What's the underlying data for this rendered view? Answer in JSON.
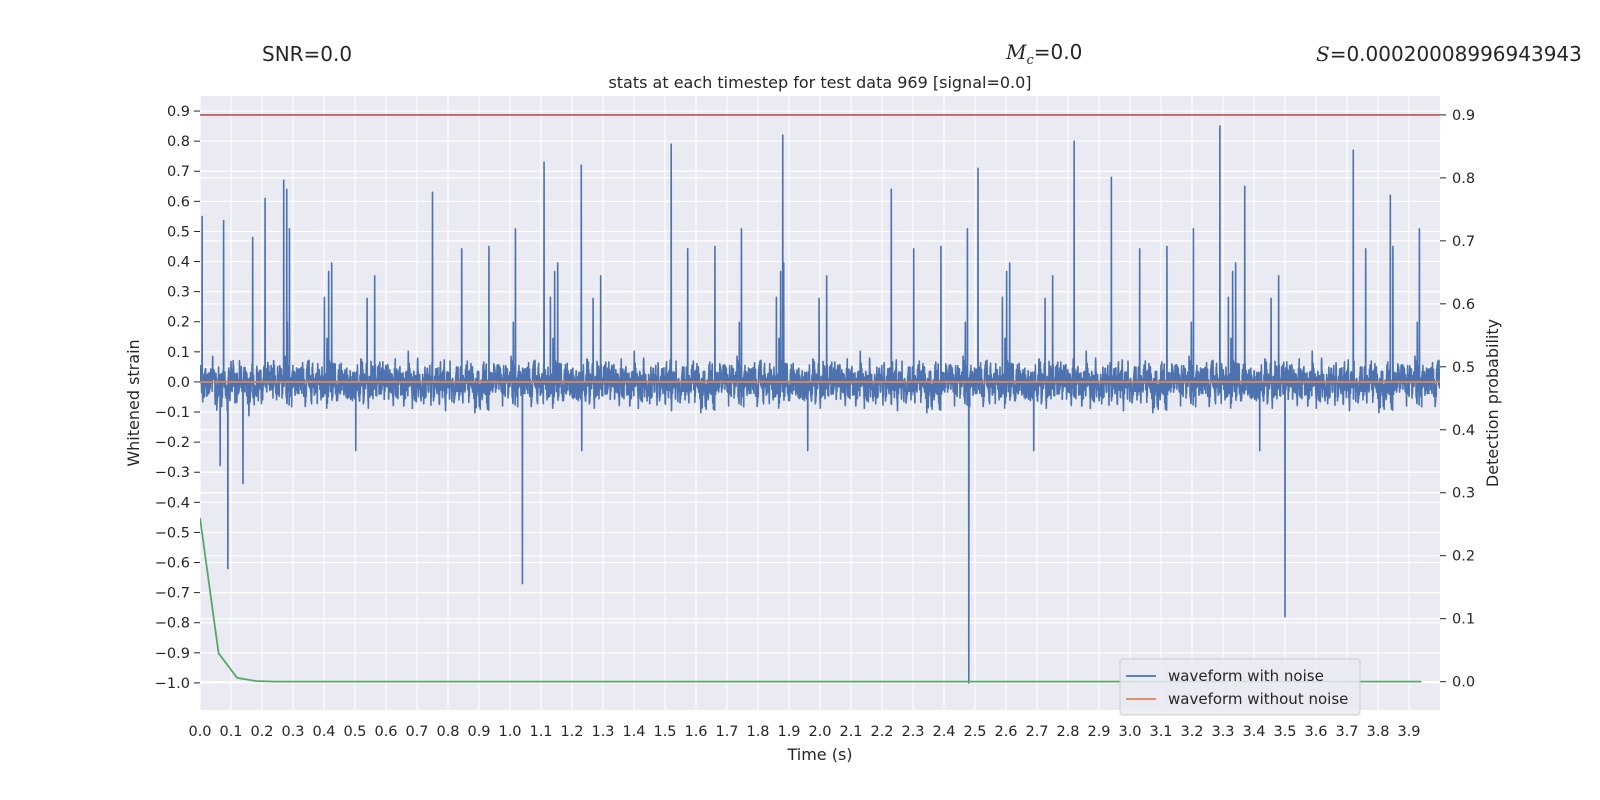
{
  "annotations": {
    "snr": "SNR=0.0",
    "mc_symbol": "M",
    "mc_sub": "c",
    "mc_value": "=0.0",
    "s_symbol": "S",
    "s_value": "=0.00020008996943943"
  },
  "chart_data": {
    "type": "line",
    "title": "stats at each timestep for test data 969 [signal=0.0]",
    "xlabel": "Time (s)",
    "ylabel": "Whitened strain",
    "y2label": "Detection probability",
    "xlim": [
      0.0,
      4.0
    ],
    "ylim": [
      -1.09,
      0.95
    ],
    "y2lim": [
      -0.045,
      0.93
    ],
    "x_ticks": [
      "0.0",
      "0.1",
      "0.2",
      "0.3",
      "0.4",
      "0.5",
      "0.6",
      "0.7",
      "0.8",
      "0.9",
      "1.0",
      "1.1",
      "1.2",
      "1.3",
      "1.4",
      "1.5",
      "1.6",
      "1.7",
      "1.8",
      "1.9",
      "2.0",
      "2.1",
      "2.2",
      "2.3",
      "2.4",
      "2.5",
      "2.6",
      "2.7",
      "2.8",
      "2.9",
      "3.0",
      "3.1",
      "3.2",
      "3.3",
      "3.4",
      "3.5",
      "3.6",
      "3.7",
      "3.8",
      "3.9"
    ],
    "y_ticks": [
      "0.9",
      "0.8",
      "0.7",
      "0.6",
      "0.5",
      "0.4",
      "0.3",
      "0.2",
      "0.1",
      "0.0",
      "−0.1",
      "−0.2",
      "−0.3",
      "−0.4",
      "−0.5",
      "−0.6",
      "−0.7",
      "−0.8",
      "−0.9",
      "−1.0"
    ],
    "y2_ticks": [
      "0.9",
      "0.8",
      "0.7",
      "0.6",
      "0.5",
      "0.4",
      "0.3",
      "0.2",
      "0.1",
      "0.0"
    ],
    "grid": true,
    "legend_position": "lower-right",
    "colors": {
      "noisy": "#4c72b0",
      "clean": "#dd8452",
      "probability": "#55a868",
      "threshold": "#c44e52",
      "background": "#eaeaf2",
      "grid": "#ffffff"
    },
    "series": [
      {
        "name": "waveform with noise",
        "kind": "noise",
        "points_per_second": 2048,
        "min": -1.0,
        "max": 0.85,
        "peaks": [
          {
            "x": 0.007,
            "y": 0.55
          },
          {
            "x": 0.09,
            "y": -0.62
          },
          {
            "x": 0.17,
            "y": 0.48
          },
          {
            "x": 0.21,
            "y": 0.61
          },
          {
            "x": 0.27,
            "y": 0.67
          },
          {
            "x": 0.28,
            "y": 0.64
          },
          {
            "x": 0.75,
            "y": 0.63
          },
          {
            "x": 1.04,
            "y": -0.67
          },
          {
            "x": 1.11,
            "y": 0.73
          },
          {
            "x": 1.23,
            "y": 0.72
          },
          {
            "x": 1.52,
            "y": 0.79
          },
          {
            "x": 1.88,
            "y": 0.82
          },
          {
            "x": 2.23,
            "y": 0.64
          },
          {
            "x": 2.48,
            "y": -1.0
          },
          {
            "x": 2.51,
            "y": 0.71
          },
          {
            "x": 2.82,
            "y": 0.8
          },
          {
            "x": 2.94,
            "y": 0.68
          },
          {
            "x": 3.29,
            "y": 0.85
          },
          {
            "x": 3.37,
            "y": 0.65
          },
          {
            "x": 3.5,
            "y": -0.78
          },
          {
            "x": 3.72,
            "y": 0.77
          },
          {
            "x": 3.84,
            "y": 0.62
          }
        ]
      },
      {
        "name": "waveform without noise",
        "kind": "constant",
        "y": 0.0
      },
      {
        "name": "detection probability",
        "axis": "right",
        "x": [
          0.0,
          0.06,
          0.12,
          0.18,
          0.24,
          0.3,
          0.5,
          1.0,
          2.0,
          3.0,
          3.94
        ],
        "values": [
          0.26,
          0.045,
          0.006,
          0.001,
          0.0,
          0.0,
          0.0,
          0.0,
          0.0,
          0.0,
          0.0
        ]
      },
      {
        "name": "threshold",
        "axis": "right",
        "kind": "constant",
        "y": 0.9
      }
    ],
    "legend": [
      "waveform with noise",
      "waveform without noise"
    ]
  }
}
